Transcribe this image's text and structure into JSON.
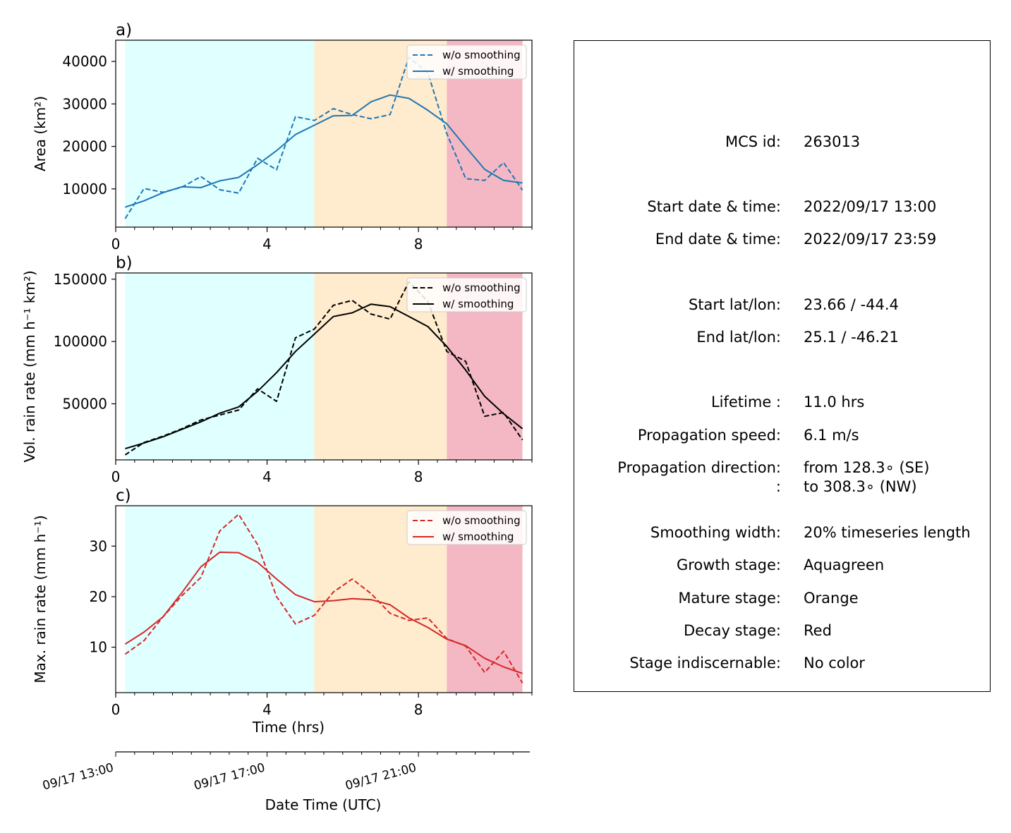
{
  "chart_data": [
    {
      "type": "line",
      "panel_label": "a)",
      "ylabel": "Area  (km²)",
      "xlim": [
        0,
        11
      ],
      "ylim": [
        1000,
        45000
      ],
      "yticks": [
        10000,
        20000,
        30000,
        40000
      ],
      "xticks": [
        0,
        4,
        8
      ],
      "stages": [
        {
          "name": "Growth",
          "color": "#e0ffff",
          "x_start": 0.25,
          "x_end": 5.25
        },
        {
          "name": "Mature",
          "color": "#ffebcd",
          "x_start": 5.25,
          "x_end": 8.75
        },
        {
          "name": "Decay",
          "color": "#f4b8c4",
          "x_start": 8.75,
          "x_end": 10.75
        }
      ],
      "x": [
        0.25,
        0.75,
        1.25,
        1.75,
        2.25,
        2.75,
        3.25,
        3.75,
        4.25,
        4.75,
        5.25,
        5.75,
        6.25,
        6.75,
        7.25,
        7.75,
        8.25,
        8.75,
        9.25,
        9.75,
        10.25,
        10.75
      ],
      "legend_loc": "upper right",
      "series": [
        {
          "name": "w/o smoothing",
          "style": "dashed",
          "color": "#1f77b4",
          "values": [
            3000,
            10100,
            9200,
            10400,
            12900,
            9800,
            9000,
            17200,
            14500,
            27000,
            26100,
            28900,
            27500,
            26500,
            27500,
            41000,
            37300,
            23000,
            12400,
            12000,
            16200,
            9700
          ]
        },
        {
          "name": "w/ smoothing",
          "style": "solid",
          "color": "#1f77b4",
          "values": [
            5700,
            7200,
            9100,
            10500,
            10300,
            11900,
            12700,
            15700,
            19000,
            22800,
            25000,
            27200,
            27300,
            30500,
            32100,
            31300,
            28500,
            25300,
            19900,
            14600,
            12000,
            11400
          ]
        }
      ]
    },
    {
      "type": "line",
      "panel_label": "b)",
      "ylabel": "Vol. rain rate (mm h⁻¹ km²)",
      "xlim": [
        0,
        11
      ],
      "ylim": [
        5000,
        155000
      ],
      "yticks": [
        50000,
        100000,
        150000
      ],
      "xticks": [
        0,
        4,
        8
      ],
      "stages": [
        {
          "name": "Growth",
          "color": "#e0ffff",
          "x_start": 0.25,
          "x_end": 5.25
        },
        {
          "name": "Mature",
          "color": "#ffebcd",
          "x_start": 5.25,
          "x_end": 8.75
        },
        {
          "name": "Decay",
          "color": "#f4b8c4",
          "x_start": 8.75,
          "x_end": 10.75
        }
      ],
      "x": [
        0.25,
        0.75,
        1.25,
        1.75,
        2.25,
        2.75,
        3.25,
        3.75,
        4.25,
        4.75,
        5.25,
        5.75,
        6.25,
        6.75,
        7.25,
        7.75,
        8.25,
        8.75,
        9.25,
        9.75,
        10.25,
        10.75
      ],
      "legend_loc": "upper right",
      "series": [
        {
          "name": "w/o smoothing",
          "style": "dashed",
          "color": "#000000",
          "values": [
            9000,
            19000,
            24000,
            30000,
            37000,
            41000,
            45000,
            62000,
            52000,
            103000,
            110000,
            129000,
            133000,
            122000,
            118000,
            148000,
            132000,
            92000,
            84000,
            40000,
            43000,
            21000
          ]
        },
        {
          "name": "w/ smoothing",
          "style": "solid",
          "color": "#000000",
          "values": [
            14000,
            18500,
            23500,
            29500,
            35500,
            42500,
            47500,
            60000,
            75000,
            92000,
            106000,
            120000,
            123000,
            130000,
            128000,
            120000,
            112000,
            96000,
            77000,
            56000,
            42000,
            30000
          ]
        }
      ]
    },
    {
      "type": "line",
      "panel_label": "c)",
      "ylabel": "Max. rain rate  (mm h⁻¹)",
      "xlabel": "Time (hrs)",
      "xlim": [
        0,
        11
      ],
      "ylim": [
        1,
        38
      ],
      "yticks": [
        10,
        20,
        30
      ],
      "xticks": [
        0,
        4,
        8
      ],
      "stages": [
        {
          "name": "Growth",
          "color": "#e0ffff",
          "x_start": 0.25,
          "x_end": 5.25
        },
        {
          "name": "Mature",
          "color": "#ffebcd",
          "x_start": 5.25,
          "x_end": 8.75
        },
        {
          "name": "Decay",
          "color": "#f4b8c4",
          "x_start": 8.75,
          "x_end": 10.75
        }
      ],
      "x": [
        0.25,
        0.75,
        1.25,
        1.75,
        2.25,
        2.75,
        3.25,
        3.75,
        4.25,
        4.75,
        5.25,
        5.75,
        6.25,
        6.75,
        7.25,
        7.75,
        8.25,
        8.75,
        9.25,
        9.75,
        10.25,
        10.75
      ],
      "legend_loc": "upper right",
      "series": [
        {
          "name": "w/o smoothing",
          "style": "dashed",
          "color": "#d62728",
          "values": [
            8.6,
            11.3,
            16.0,
            20.2,
            23.8,
            33.0,
            36.3,
            30.3,
            20.0,
            14.6,
            16.3,
            20.9,
            23.5,
            20.6,
            16.7,
            15.3,
            15.8,
            11.7,
            10.2,
            5.0,
            9.2,
            2.9
          ]
        },
        {
          "name": "w/ smoothing",
          "style": "solid",
          "color": "#d62728",
          "values": [
            10.6,
            13.0,
            16.0,
            20.8,
            25.9,
            28.8,
            28.7,
            26.8,
            23.5,
            20.4,
            19.0,
            19.2,
            19.6,
            19.4,
            18.4,
            15.8,
            13.9,
            11.6,
            10.3,
            7.8,
            6.1,
            4.8
          ]
        }
      ]
    }
  ],
  "date_axis": {
    "xlabel": "Date Time (UTC)",
    "ticks": [
      {
        "hour": 0,
        "label": "09/17 13:00"
      },
      {
        "hour": 4,
        "label": "09/17 17:00"
      },
      {
        "hour": 8,
        "label": "09/17 21:00"
      }
    ]
  },
  "info": {
    "rows": [
      {
        "key": "MCS id:",
        "value": "263013"
      },
      {
        "key": "Start date & time:",
        "value": "2022/09/17 13:00"
      },
      {
        "key": "End date & time:",
        "value": "2022/09/17 23:59"
      },
      {
        "key": "Start lat/lon:",
        "value": "23.66 / -44.4"
      },
      {
        "key": "End lat/lon:",
        "value": "25.1 / -46.21"
      },
      {
        "key": "Lifetime :",
        "value": "11.0 hrs"
      },
      {
        "key": "Propagation speed:",
        "value": "6.1 m/s"
      },
      {
        "key": "Propagation direction:",
        "value": "from 128.3∘ (SE)"
      },
      {
        "key": ":",
        "value": "to   308.3∘ (NW)"
      },
      {
        "key": "Smoothing width:",
        "value": "20% timeseries length"
      },
      {
        "key": "Growth stage:",
        "value": "Aquagreen"
      },
      {
        "key": "Mature stage:",
        "value": "Orange"
      },
      {
        "key": "Decay stage:",
        "value": "Red"
      },
      {
        "key": "Stage indiscernable:",
        "value": "No color"
      }
    ]
  }
}
